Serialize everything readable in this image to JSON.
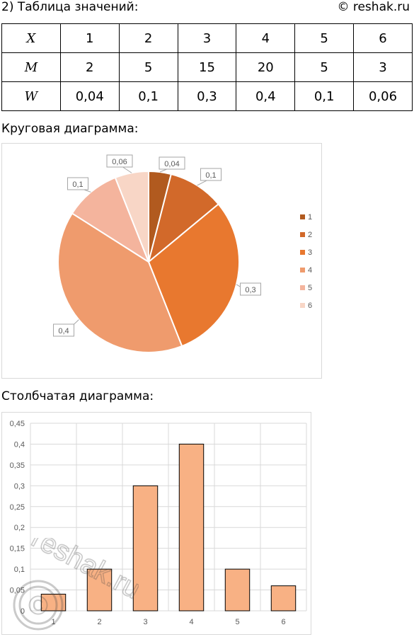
{
  "header": {
    "heading": "2) Таблица значений:",
    "copyright": "© reshak.ru"
  },
  "table": {
    "rows": [
      {
        "label": "X",
        "cells": [
          "1",
          "2",
          "3",
          "4",
          "5",
          "6"
        ]
      },
      {
        "label": "M",
        "cells": [
          "2",
          "5",
          "15",
          "20",
          "5",
          "3"
        ]
      },
      {
        "label": "W",
        "cells": [
          "0,04",
          "0,1",
          "0,3",
          "0,4",
          "0,1",
          "0,06"
        ]
      }
    ]
  },
  "pie_section_label": "Круговая диаграмма:",
  "bar_section_label": "Столбчатая диаграмма:",
  "watermark_text": "reshak.ru",
  "colors": {
    "pie": [
      "#b15a1f",
      "#d2692a",
      "#e8782f",
      "#ef9b6d",
      "#f4b49d",
      "#f8d6c6"
    ],
    "bar_fill": "#f8b184",
    "bar_stroke": "#000000",
    "grid": "#d9d9d9"
  },
  "chart_data": [
    {
      "type": "pie",
      "categories": [
        "1",
        "2",
        "3",
        "4",
        "5",
        "6"
      ],
      "values": [
        0.04,
        0.1,
        0.3,
        0.4,
        0.1,
        0.06
      ],
      "data_labels": [
        "0,04",
        "0,1",
        "0,3",
        "0,4",
        "0,1",
        "0,06"
      ],
      "legend": [
        "1",
        "2",
        "3",
        "4",
        "5",
        "6"
      ],
      "legend_position": "right"
    },
    {
      "type": "bar",
      "categories": [
        "1",
        "2",
        "3",
        "4",
        "5",
        "6"
      ],
      "values": [
        0.04,
        0.1,
        0.3,
        0.4,
        0.1,
        0.06
      ],
      "ylim": [
        0,
        0.45
      ],
      "yticks": [
        "0",
        "0,05",
        "0,1",
        "0,15",
        "0,2",
        "0,25",
        "0,3",
        "0,35",
        "0,4",
        "0,45"
      ],
      "grid": true
    }
  ]
}
